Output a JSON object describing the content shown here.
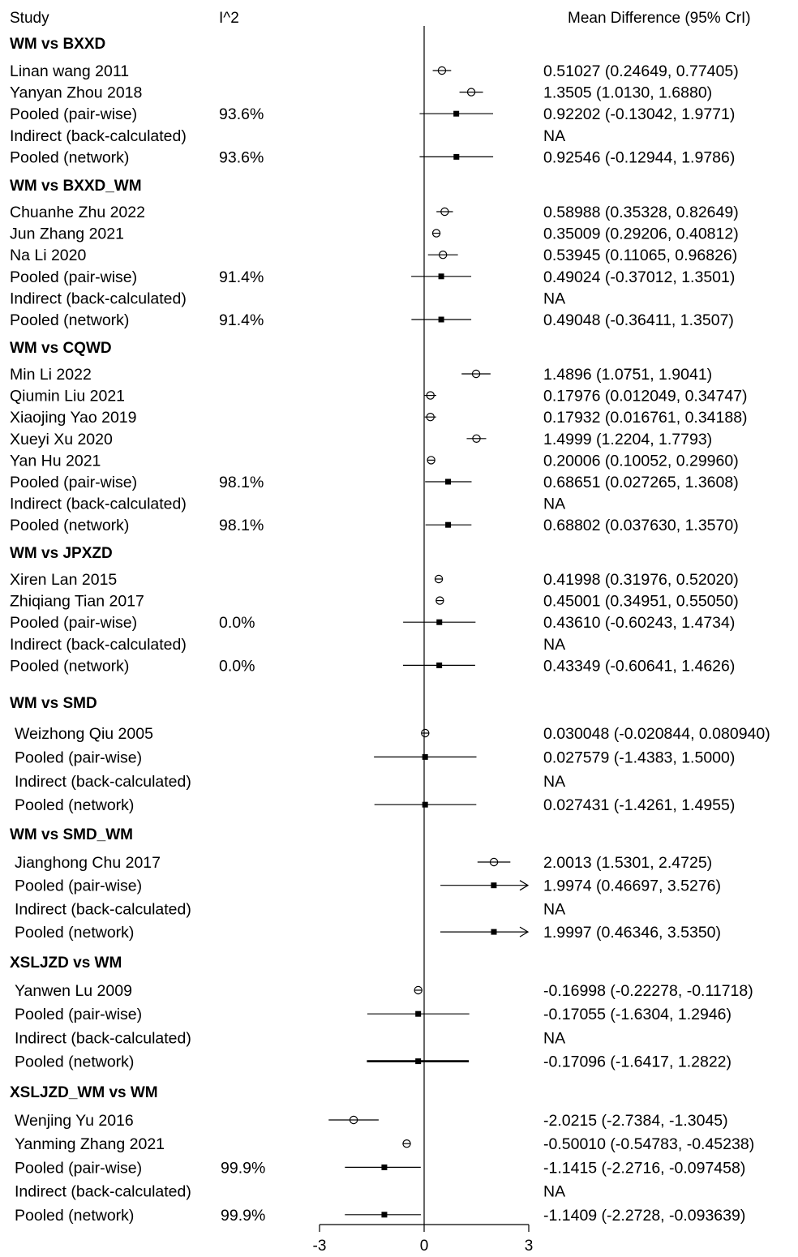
{
  "headers": {
    "study": "Study",
    "i2": "I^2",
    "effect": "Mean Difference (95% CrI)"
  },
  "chart_data": {
    "type": "forest",
    "xlim": [
      -3,
      3
    ],
    "xticks": [
      -3,
      0,
      3
    ],
    "groups": [
      {
        "title": "WM vs BXXD",
        "rows": [
          {
            "label": "Linan wang 2011",
            "i2": "",
            "est": 0.51027,
            "lo": 0.24649,
            "hi": 0.77405,
            "kind": "study",
            "text": "0.51027 (0.24649, 0.77405)"
          },
          {
            "label": "Yanyan Zhou 2018",
            "i2": "",
            "est": 1.3505,
            "lo": 1.013,
            "hi": 1.688,
            "kind": "study",
            "text": "1.3505 (1.0130, 1.6880)"
          },
          {
            "label": "Pooled (pair-wise)",
            "i2": "93.6%",
            "est": 0.92202,
            "lo": -0.13042,
            "hi": 1.9771,
            "kind": "pooled",
            "text": "0.92202 (-0.13042, 1.9771)"
          },
          {
            "label": "Indirect (back-calculated)",
            "i2": "",
            "est": null,
            "lo": null,
            "hi": null,
            "kind": "na",
            "text": "NA"
          },
          {
            "label": "Pooled (network)",
            "i2": "93.6%",
            "est": 0.92546,
            "lo": -0.12944,
            "hi": 1.9786,
            "kind": "pooled",
            "text": "0.92546 (-0.12944, 1.9786)"
          }
        ]
      },
      {
        "title": "WM vs BXXD_WM",
        "rows": [
          {
            "label": "Chuanhe Zhu 2022",
            "i2": "",
            "est": 0.58988,
            "lo": 0.35328,
            "hi": 0.82649,
            "kind": "study",
            "text": "0.58988 (0.35328, 0.82649)"
          },
          {
            "label": "Jun Zhang 2021",
            "i2": "",
            "est": 0.35009,
            "lo": 0.29206,
            "hi": 0.40812,
            "kind": "study",
            "text": "0.35009 (0.29206, 0.40812)"
          },
          {
            "label": "Na Li 2020",
            "i2": "",
            "est": 0.53945,
            "lo": 0.11065,
            "hi": 0.96826,
            "kind": "study",
            "text": "0.53945 (0.11065, 0.96826)"
          },
          {
            "label": "Pooled (pair-wise)",
            "i2": "91.4%",
            "est": 0.49024,
            "lo": -0.37012,
            "hi": 1.3501,
            "kind": "pooled",
            "text": "0.49024 (-0.37012, 1.3501)"
          },
          {
            "label": "Indirect (back-calculated)",
            "i2": "",
            "est": null,
            "lo": null,
            "hi": null,
            "kind": "na",
            "text": "NA"
          },
          {
            "label": "Pooled (network)",
            "i2": "91.4%",
            "est": 0.49048,
            "lo": -0.36411,
            "hi": 1.3507,
            "kind": "pooled",
            "text": "0.49048 (-0.36411, 1.3507)"
          }
        ]
      },
      {
        "title": "WM vs CQWD",
        "rows": [
          {
            "label": "Min Li 2022",
            "i2": "",
            "est": 1.4896,
            "lo": 1.0751,
            "hi": 1.9041,
            "kind": "study",
            "text": "1.4896 (1.0751, 1.9041)"
          },
          {
            "label": "Qiumin Liu 2021",
            "i2": "",
            "est": 0.17976,
            "lo": 0.012049,
            "hi": 0.34747,
            "kind": "study",
            "text": "0.17976 (0.012049, 0.34747)"
          },
          {
            "label": "Xiaojing Yao 2019",
            "i2": "",
            "est": 0.17932,
            "lo": 0.016761,
            "hi": 0.34188,
            "kind": "study",
            "text": "0.17932 (0.016761, 0.34188)"
          },
          {
            "label": "Xueyi Xu 2020",
            "i2": "",
            "est": 1.4999,
            "lo": 1.2204,
            "hi": 1.7793,
            "kind": "study",
            "text": "1.4999 (1.2204, 1.7793)"
          },
          {
            "label": "Yan Hu 2021",
            "i2": "",
            "est": 0.20006,
            "lo": 0.10052,
            "hi": 0.2996,
            "kind": "study",
            "text": "0.20006 (0.10052, 0.29960)"
          },
          {
            "label": "Pooled (pair-wise)",
            "i2": "98.1%",
            "est": 0.68651,
            "lo": 0.027265,
            "hi": 1.3608,
            "kind": "pooled",
            "text": "0.68651 (0.027265, 1.3608)"
          },
          {
            "label": "Indirect (back-calculated)",
            "i2": "",
            "est": null,
            "lo": null,
            "hi": null,
            "kind": "na",
            "text": "NA"
          },
          {
            "label": "Pooled (network)",
            "i2": "98.1%",
            "est": 0.68802,
            "lo": 0.03763,
            "hi": 1.357,
            "kind": "pooled",
            "text": "0.68802 (0.037630, 1.3570)"
          }
        ]
      },
      {
        "title": "WM vs JPXZD",
        "rows": [
          {
            "label": "Xiren Lan 2015",
            "i2": "",
            "est": 0.41998,
            "lo": 0.31976,
            "hi": 0.5202,
            "kind": "study",
            "text": "0.41998 (0.31976, 0.52020)"
          },
          {
            "label": "Zhiqiang Tian 2017",
            "i2": "",
            "est": 0.45001,
            "lo": 0.34951,
            "hi": 0.5505,
            "kind": "study",
            "text": "0.45001 (0.34951, 0.55050)"
          },
          {
            "label": "Pooled (pair-wise)",
            "i2": "0.0%",
            "est": 0.4361,
            "lo": -0.60243,
            "hi": 1.4734,
            "kind": "pooled",
            "text": "0.43610 (-0.60243, 1.4734)"
          },
          {
            "label": "Indirect (back-calculated)",
            "i2": "",
            "est": null,
            "lo": null,
            "hi": null,
            "kind": "na",
            "text": "NA"
          },
          {
            "label": "Pooled (network)",
            "i2": "0.0%",
            "est": 0.43349,
            "lo": -0.60641,
            "hi": 1.4626,
            "kind": "pooled",
            "text": "0.43349 (-0.60641, 1.4626)"
          }
        ]
      },
      {
        "title": "WM vs SMD",
        "rows": [
          {
            "label": "Weizhong Qiu 2005",
            "i2": "",
            "est": 0.030048,
            "lo": -0.020844,
            "hi": 0.08094,
            "kind": "study",
            "text": "0.030048 (-0.020844, 0.080940)"
          },
          {
            "label": "Pooled (pair-wise)",
            "i2": "",
            "est": 0.027579,
            "lo": -1.4383,
            "hi": 1.5,
            "kind": "pooled",
            "text": "0.027579 (-1.4383, 1.5000)"
          },
          {
            "label": "Indirect (back-calculated)",
            "i2": "",
            "est": null,
            "lo": null,
            "hi": null,
            "kind": "na",
            "text": "NA"
          },
          {
            "label": "Pooled (network)",
            "i2": "",
            "est": 0.027431,
            "lo": -1.4261,
            "hi": 1.4955,
            "kind": "pooled",
            "text": "0.027431 (-1.4261, 1.4955)"
          }
        ]
      },
      {
        "title": "WM vs SMD_WM",
        "rows": [
          {
            "label": "Jianghong Chu 2017",
            "i2": "",
            "est": 2.0013,
            "lo": 1.5301,
            "hi": 2.4725,
            "kind": "study",
            "text": "2.0013 (1.5301, 2.4725)"
          },
          {
            "label": "Pooled (pair-wise)",
            "i2": "",
            "est": 1.9974,
            "lo": 0.46697,
            "hi": 3.5276,
            "kind": "pooled",
            "text": "1.9974 (0.46697, 3.5276)"
          },
          {
            "label": "Indirect (back-calculated)",
            "i2": "",
            "est": null,
            "lo": null,
            "hi": null,
            "kind": "na",
            "text": "NA"
          },
          {
            "label": "Pooled (network)",
            "i2": "",
            "est": 1.9997,
            "lo": 0.46346,
            "hi": 3.535,
            "kind": "pooled",
            "text": "1.9997 (0.46346, 3.5350)"
          }
        ]
      },
      {
        "title": "XSLJZD vs WM",
        "rows": [
          {
            "label": "Yanwen Lu 2009",
            "i2": "",
            "est": -0.16998,
            "lo": -0.22278,
            "hi": -0.11718,
            "kind": "study",
            "text": "-0.16998 (-0.22278, -0.11718)"
          },
          {
            "label": "Pooled (pair-wise)",
            "i2": "",
            "est": -0.17055,
            "lo": -1.6304,
            "hi": 1.2946,
            "kind": "pooled",
            "text": "-0.17055 (-1.6304, 1.2946)"
          },
          {
            "label": "Indirect (back-calculated)",
            "i2": "",
            "est": null,
            "lo": null,
            "hi": null,
            "kind": "na",
            "text": "NA"
          },
          {
            "label": "Pooled (network)",
            "i2": "",
            "est": -0.17096,
            "lo": -1.6417,
            "hi": 1.2822,
            "kind": "pooled",
            "text": "-0.17096 (-1.6417, 1.2822)"
          }
        ]
      },
      {
        "title": "XSLJZD_WM vs WM",
        "rows": [
          {
            "label": "Wenjing Yu 2016",
            "i2": "",
            "est": -2.0215,
            "lo": -2.7384,
            "hi": -1.3045,
            "kind": "study",
            "text": "-2.0215 (-2.7384, -1.3045)"
          },
          {
            "label": "Yanming Zhang 2021",
            "i2": "",
            "est": -0.5001,
            "lo": -0.54783,
            "hi": -0.45238,
            "kind": "study",
            "text": "-0.50010 (-0.54783, -0.45238)"
          },
          {
            "label": "Pooled (pair-wise)",
            "i2": "99.9%",
            "est": -1.1415,
            "lo": -2.2716,
            "hi": -0.097458,
            "kind": "pooled",
            "text": "-1.1415 (-2.2716, -0.097458)"
          },
          {
            "label": "Indirect (back-calculated)",
            "i2": "",
            "est": null,
            "lo": null,
            "hi": null,
            "kind": "na",
            "text": "NA"
          },
          {
            "label": "Pooled (network)",
            "i2": "99.9%",
            "est": -1.1409,
            "lo": -2.2728,
            "hi": -0.093639,
            "kind": "pooled",
            "text": "-1.1409 (-2.2728, -0.093639)"
          }
        ]
      }
    ]
  }
}
